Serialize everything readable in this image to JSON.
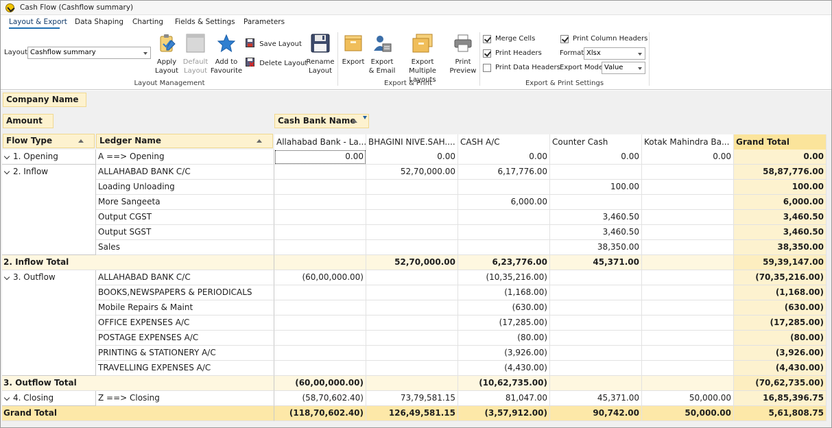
{
  "window": {
    "title": "Cash Flow (Cashflow summary)"
  },
  "tabs": [
    {
      "label": "Layout & Export",
      "active": true
    },
    {
      "label": "Data Shaping"
    },
    {
      "label": "Charting"
    },
    {
      "label": "Fields & Settings"
    },
    {
      "label": "Parameters"
    }
  ],
  "ribbon": {
    "layout_label": "Layout",
    "layout_value": "Cashflow summary",
    "apply_layout": "Apply Layout",
    "default_layout": "Default Layout",
    "add_favourite": "Add to Favourite",
    "save_layout": "Save Layout",
    "delete_layout": "Delete Layout",
    "rename_layout": "Rename Layout",
    "group_layout": "Layout Management",
    "export": "Export",
    "export_email": "Export & Email",
    "export_multiple": "Export Multiple Layouts",
    "print_preview": "Print Preview",
    "group_export": "Export & Print",
    "merge_cells": "Merge Cells",
    "print_headers": "Print Headers",
    "print_data_headers": "Print Data Headers",
    "print_column_headers": "Print Column Headers",
    "format_label": "Format",
    "format_value": "Xlsx",
    "export_mode_label": "Export Mode",
    "export_mode_value": "Value",
    "group_settings": "Export & Print Settings",
    "merge_cells_checked": true,
    "print_headers_checked": true,
    "print_data_headers_checked": false,
    "print_column_headers_checked": true
  },
  "pivot": {
    "filter_field": "Company Name",
    "data_field": "Amount",
    "column_field": "Cash Bank Name",
    "row_fields": [
      "Flow Type",
      "Ledger Name"
    ],
    "columns": [
      "Allahabad Bank - La...",
      "BHAGINI NIVE.SAH....",
      "CASH A/C",
      "Counter Cash",
      "Kotak Mahindra Ba...",
      "Grand Total"
    ],
    "groups": [
      {
        "flow": "1. Opening",
        "rows": [
          {
            "ledger": "A ==> Opening",
            "values": [
              "0.00",
              "0.00",
              "0.00",
              "0.00",
              "0.00",
              "0.00"
            ]
          }
        ]
      },
      {
        "flow": "2. Inflow",
        "rows": [
          {
            "ledger": "ALLAHABAD BANK C/C",
            "values": [
              "",
              "52,70,000.00",
              "6,17,776.00",
              "",
              "",
              "58,87,776.00"
            ]
          },
          {
            "ledger": "Loading Unloading",
            "values": [
              "",
              "",
              "",
              "100.00",
              "",
              "100.00"
            ]
          },
          {
            "ledger": "More Sangeeta",
            "values": [
              "",
              "",
              "6,000.00",
              "",
              "",
              "6,000.00"
            ]
          },
          {
            "ledger": "Output CGST",
            "values": [
              "",
              "",
              "",
              "3,460.50",
              "",
              "3,460.50"
            ]
          },
          {
            "ledger": "Output SGST",
            "values": [
              "",
              "",
              "",
              "3,460.50",
              "",
              "3,460.50"
            ]
          },
          {
            "ledger": "Sales",
            "values": [
              "",
              "",
              "",
              "38,350.00",
              "",
              "38,350.00"
            ]
          }
        ],
        "total_label": "2. Inflow Total",
        "total_values": [
          "",
          "52,70,000.00",
          "6,23,776.00",
          "45,371.00",
          "",
          "59,39,147.00"
        ]
      },
      {
        "flow": "3. Outflow",
        "rows": [
          {
            "ledger": "ALLAHABAD BANK C/C",
            "values": [
              "(60,00,000.00)",
              "",
              "(10,35,216.00)",
              "",
              "",
              "(70,35,216.00)"
            ]
          },
          {
            "ledger": "BOOKS,NEWSPAPERS & PERIODICALS",
            "values": [
              "",
              "",
              "(1,168.00)",
              "",
              "",
              "(1,168.00)"
            ]
          },
          {
            "ledger": "Mobile Repairs & Maint",
            "values": [
              "",
              "",
              "(630.00)",
              "",
              "",
              "(630.00)"
            ]
          },
          {
            "ledger": "OFFICE EXPENSES A/C",
            "values": [
              "",
              "",
              "(17,285.00)",
              "",
              "",
              "(17,285.00)"
            ]
          },
          {
            "ledger": "POSTAGE EXPENSES A/C",
            "values": [
              "",
              "",
              "(80.00)",
              "",
              "",
              "(80.00)"
            ]
          },
          {
            "ledger": "PRINTING & STATIONERY A/C",
            "values": [
              "",
              "",
              "(3,926.00)",
              "",
              "",
              "(3,926.00)"
            ]
          },
          {
            "ledger": "TRAVELLING EXPENSES A/C",
            "values": [
              "",
              "",
              "(4,430.00)",
              "",
              "",
              "(4,430.00)"
            ]
          }
        ],
        "total_label": "3. Outflow Total",
        "total_values": [
          "(60,00,000.00)",
          "",
          "(10,62,735.00)",
          "",
          "",
          "(70,62,735.00)"
        ]
      },
      {
        "flow": "4. Closing",
        "rows": [
          {
            "ledger": "Z ==> Closing",
            "values": [
              "(58,70,602.40)",
              "73,79,581.15",
              "81,047.00",
              "45,371.00",
              "50,000.00",
              "16,85,396.75"
            ]
          }
        ]
      }
    ],
    "grand_total_label": "Grand Total",
    "grand_total_values": [
      "(118,70,602.40)",
      "126,49,581.15",
      "(3,57,912.00)",
      "90,742.00",
      "50,000.00",
      "5,61,808.75"
    ]
  }
}
